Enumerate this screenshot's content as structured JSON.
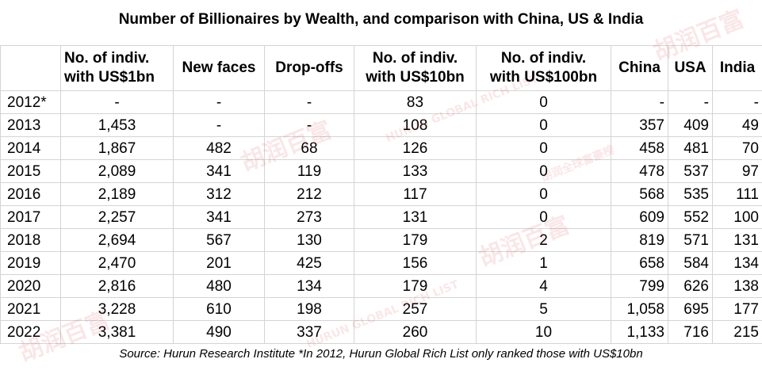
{
  "title": "Number of Billionaires by Wealth, and comparison with China, US & India",
  "columns": [
    {
      "line1": "",
      "line2": ""
    },
    {
      "line1": "No. of indiv.",
      "line2": "with US$1bn"
    },
    {
      "line1": "New faces",
      "line2": ""
    },
    {
      "line1": "Drop-offs",
      "line2": ""
    },
    {
      "line1": "No. of indiv.",
      "line2": "with US$10bn"
    },
    {
      "line1": "No. of indiv.",
      "line2": "with US$100bn"
    },
    {
      "line1": "China",
      "line2": ""
    },
    {
      "line1": "USA",
      "line2": ""
    },
    {
      "line1": "India",
      "line2": ""
    }
  ],
  "rows": [
    {
      "year": "2012*",
      "bn1": "-",
      "new": "-",
      "drop": "-",
      "bn10": "83",
      "bn100": "0",
      "china": "-",
      "usa": "-",
      "india": "-"
    },
    {
      "year": "2013",
      "bn1": "1,453",
      "new": "-",
      "drop": "-",
      "bn10": "108",
      "bn100": "0",
      "china": "357",
      "usa": "409",
      "india": "49"
    },
    {
      "year": "2014",
      "bn1": "1,867",
      "new": "482",
      "drop": "68",
      "bn10": "126",
      "bn100": "0",
      "china": "458",
      "usa": "481",
      "india": "70"
    },
    {
      "year": "2015",
      "bn1": "2,089",
      "new": "341",
      "drop": "119",
      "bn10": "133",
      "bn100": "0",
      "china": "478",
      "usa": "537",
      "india": "97"
    },
    {
      "year": "2016",
      "bn1": "2,189",
      "new": "312",
      "drop": "212",
      "bn10": "117",
      "bn100": "0",
      "china": "568",
      "usa": "535",
      "india": "111"
    },
    {
      "year": "2017",
      "bn1": "2,257",
      "new": "341",
      "drop": "273",
      "bn10": "131",
      "bn100": "0",
      "china": "609",
      "usa": "552",
      "india": "100"
    },
    {
      "year": "2018",
      "bn1": "2,694",
      "new": "567",
      "drop": "130",
      "bn10": "179",
      "bn100": "2",
      "china": "819",
      "usa": "571",
      "india": "131"
    },
    {
      "year": "2019",
      "bn1": "2,470",
      "new": "201",
      "drop": "425",
      "bn10": "156",
      "bn100": "1",
      "china": "658",
      "usa": "584",
      "india": "134"
    },
    {
      "year": "2020",
      "bn1": "2,816",
      "new": "480",
      "drop": "134",
      "bn10": "179",
      "bn100": "4",
      "china": "799",
      "usa": "626",
      "india": "138"
    },
    {
      "year": "2021",
      "bn1": "3,228",
      "new": "610",
      "drop": "198",
      "bn10": "257",
      "bn100": "5",
      "china": "1,058",
      "usa": "695",
      "india": "177"
    },
    {
      "year": "2022",
      "bn1": "3,381",
      "new": "490",
      "drop": "337",
      "bn10": "260",
      "bn100": "10",
      "china": "1,133",
      "usa": "716",
      "india": "215"
    }
  ],
  "source": "Source: Hurun Research Institute *In 2012, Hurun Global Rich List only ranked those with US$10bn",
  "watermark": {
    "brand_cn": "胡润百富",
    "brand_en": "HURUN GLOBAL RICH LIST",
    "list_cn": "胡润全球富豪榜"
  },
  "colors": {
    "watermark": "#c9202a",
    "grid": "#d4d4d4"
  }
}
